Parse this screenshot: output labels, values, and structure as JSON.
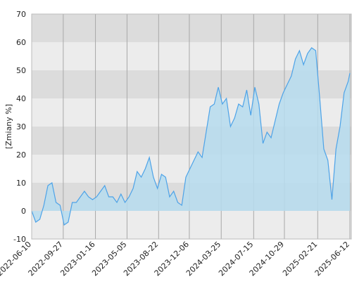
{
  "chart_data": {
    "type": "area",
    "y_label": "[Zmiany %]",
    "color": "#4da3e8",
    "fill_color": "#b6dcee",
    "x": [
      "2022-06-10",
      "2022-06-24",
      "2022-07-08",
      "2022-07-22",
      "2022-08-05",
      "2022-08-19",
      "2022-09-02",
      "2022-09-16",
      "2022-09-30",
      "2022-10-14",
      "2022-10-28",
      "2022-11-11",
      "2022-11-25",
      "2022-12-09",
      "2022-12-23",
      "2023-01-06",
      "2023-01-20",
      "2023-02-03",
      "2023-02-17",
      "2023-03-03",
      "2023-03-17",
      "2023-03-31",
      "2023-04-14",
      "2023-04-28",
      "2023-05-12",
      "2023-05-26",
      "2023-06-09",
      "2023-06-23",
      "2023-07-07",
      "2023-07-21",
      "2023-08-04",
      "2023-08-18",
      "2023-09-01",
      "2023-09-15",
      "2023-09-29",
      "2023-10-13",
      "2023-10-27",
      "2023-11-10",
      "2023-11-24",
      "2023-12-08",
      "2023-12-22",
      "2024-01-05",
      "2024-01-19",
      "2024-02-02",
      "2024-02-16",
      "2024-03-01",
      "2024-03-15",
      "2024-03-29",
      "2024-04-12",
      "2024-04-26",
      "2024-05-10",
      "2024-05-24",
      "2024-06-07",
      "2024-06-21",
      "2024-07-05",
      "2024-07-19",
      "2024-08-02",
      "2024-08-16",
      "2024-08-30",
      "2024-09-13",
      "2024-09-27",
      "2024-10-11",
      "2024-10-25",
      "2024-11-08",
      "2024-11-22",
      "2024-12-06",
      "2024-12-20",
      "2025-01-03",
      "2025-01-17",
      "2025-01-31",
      "2025-02-14",
      "2025-02-28",
      "2025-03-14",
      "2025-03-28",
      "2025-04-11",
      "2025-04-25",
      "2025-05-09",
      "2025-05-23",
      "2025-06-06",
      "2025-06-12"
    ],
    "values": [
      0,
      -4,
      -3,
      2,
      9,
      10,
      3,
      2,
      -5,
      -4,
      3,
      3,
      5,
      7,
      5,
      4,
      5,
      7,
      9,
      5,
      5,
      3,
      6,
      3,
      5,
      8,
      14,
      12,
      15,
      19,
      12,
      8,
      13,
      12,
      5,
      7,
      3,
      2,
      12,
      15,
      18,
      21,
      19,
      28,
      37,
      38,
      44,
      38,
      40,
      30,
      33,
      38,
      37,
      43,
      34,
      44,
      38,
      24,
      28,
      26,
      32,
      38,
      42,
      45,
      48,
      54,
      57,
      52,
      56,
      58,
      57,
      40,
      22,
      18,
      4,
      22,
      30,
      42,
      46,
      49
    ],
    "xlim": [
      "2022-06-10",
      "2025-06-12"
    ],
    "xticks": [
      "2022-06-10",
      "2022-09-27",
      "2023-01-16",
      "2023-05-05",
      "2023-08-22",
      "2023-12-06",
      "2024-03-25",
      "2024-07-15",
      "2024-10-29",
      "2025-02-21",
      "2025-06-12"
    ],
    "ylim": [
      -10,
      70
    ],
    "yticks": [
      -10,
      0,
      10,
      20,
      30,
      40,
      50,
      60,
      70
    ],
    "grid": true
  }
}
